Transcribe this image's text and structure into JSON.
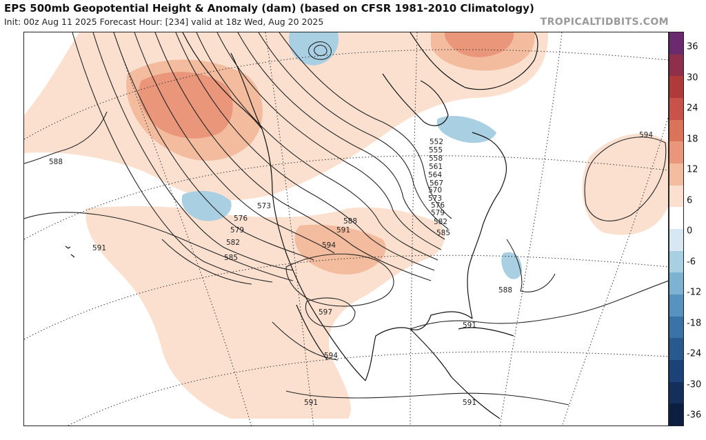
{
  "header": {
    "title": "EPS 500mb Geopotential Height & Anomaly (dam) (based on CFSR 1981-2010 Climatology)",
    "subtitle": "Init: 00z Aug 11 2025   Forecast Hour: [234]   valid at 18z Wed, Aug 20 2025",
    "brand": "TROPICALTIDBITS.COM"
  },
  "colorbar": {
    "levels": [
      "36",
      "30",
      "24",
      "18",
      "12",
      "6",
      "0",
      "-6",
      "-12",
      "-18",
      "-24",
      "-30",
      "-36"
    ],
    "colors": [
      "#6b2a6e",
      "#8f2f4b",
      "#b03a3a",
      "#c9524a",
      "#db7358",
      "#e9967a",
      "#f4bc9f",
      "#fbe0d0",
      "#ffffff",
      "#d7e8f2",
      "#a9cfe3",
      "#7eb2d2",
      "#5693bf",
      "#3a73a8",
      "#285a8f",
      "#1c4377",
      "#142f5c",
      "#0d1f40"
    ]
  },
  "contour_labels": [
    {
      "name": "label-552",
      "text": "552"
    },
    {
      "name": "label-555",
      "text": "555"
    },
    {
      "name": "label-558",
      "text": "558"
    },
    {
      "name": "label-561",
      "text": "561"
    },
    {
      "name": "label-564",
      "text": "564"
    },
    {
      "name": "label-567",
      "text": "567"
    },
    {
      "name": "label-570",
      "text": "570"
    },
    {
      "name": "label-573-east",
      "text": "573"
    },
    {
      "name": "label-576-east",
      "text": "576"
    },
    {
      "name": "label-579-east",
      "text": "579"
    },
    {
      "name": "label-582-east",
      "text": "582"
    },
    {
      "name": "label-585-east",
      "text": "585"
    },
    {
      "name": "label-573-west",
      "text": "573"
    },
    {
      "name": "label-576-west",
      "text": "576"
    },
    {
      "name": "label-579-west",
      "text": "579"
    },
    {
      "name": "label-582-west",
      "text": "582"
    },
    {
      "name": "label-585-west",
      "text": "585"
    },
    {
      "name": "label-588-pacific",
      "text": "588"
    },
    {
      "name": "label-591-pacific",
      "text": "591"
    },
    {
      "name": "label-588-plains",
      "text": "588"
    },
    {
      "name": "label-591-plains",
      "text": "591"
    },
    {
      "name": "label-594-plains",
      "text": "594"
    },
    {
      "name": "label-597",
      "text": "597"
    },
    {
      "name": "label-594-mexico",
      "text": "594"
    },
    {
      "name": "label-591-mexico",
      "text": "591"
    },
    {
      "name": "label-591-gulf",
      "text": "591"
    },
    {
      "name": "label-591-caribbean",
      "text": "591"
    },
    {
      "name": "label-588-atlantic",
      "text": "588"
    },
    {
      "name": "label-594-atlantic",
      "text": "594"
    }
  ]
}
